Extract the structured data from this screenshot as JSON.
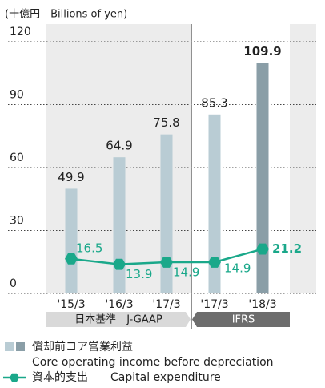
{
  "chart_data": {
    "type": "bar",
    "y_axis_label": "(十億円　Billions of yen)",
    "categories": [
      "'15/3",
      "'16/3",
      "'17/3",
      "'17/3",
      "'18/3"
    ],
    "groups": [
      {
        "label": "日本基準　J-GAAP",
        "color": "#d9d9d9"
      },
      {
        "label": "IFRS",
        "color": "#6d6d6d"
      }
    ],
    "series": [
      {
        "name": "償却前コア営業利益",
        "name_en": "Core operating income before depreciation",
        "type": "bar",
        "color": "#b9ccd4",
        "colors": [
          "#b9ccd4",
          "#b9ccd4",
          "#b9ccd4",
          "#b9ccd4",
          "#8a9ea7"
        ],
        "values": [
          49.9,
          64.9,
          75.8,
          85.3,
          109.9
        ]
      },
      {
        "name": "資本的支出",
        "name_en": "Capital expenditure",
        "type": "line",
        "color": "#1aa88a",
        "values": [
          16.5,
          13.9,
          14.9,
          14.9,
          21.2
        ]
      }
    ],
    "ylim": [
      0,
      120
    ],
    "yticks": [
      0,
      30,
      60,
      90,
      120
    ],
    "grid": true
  }
}
